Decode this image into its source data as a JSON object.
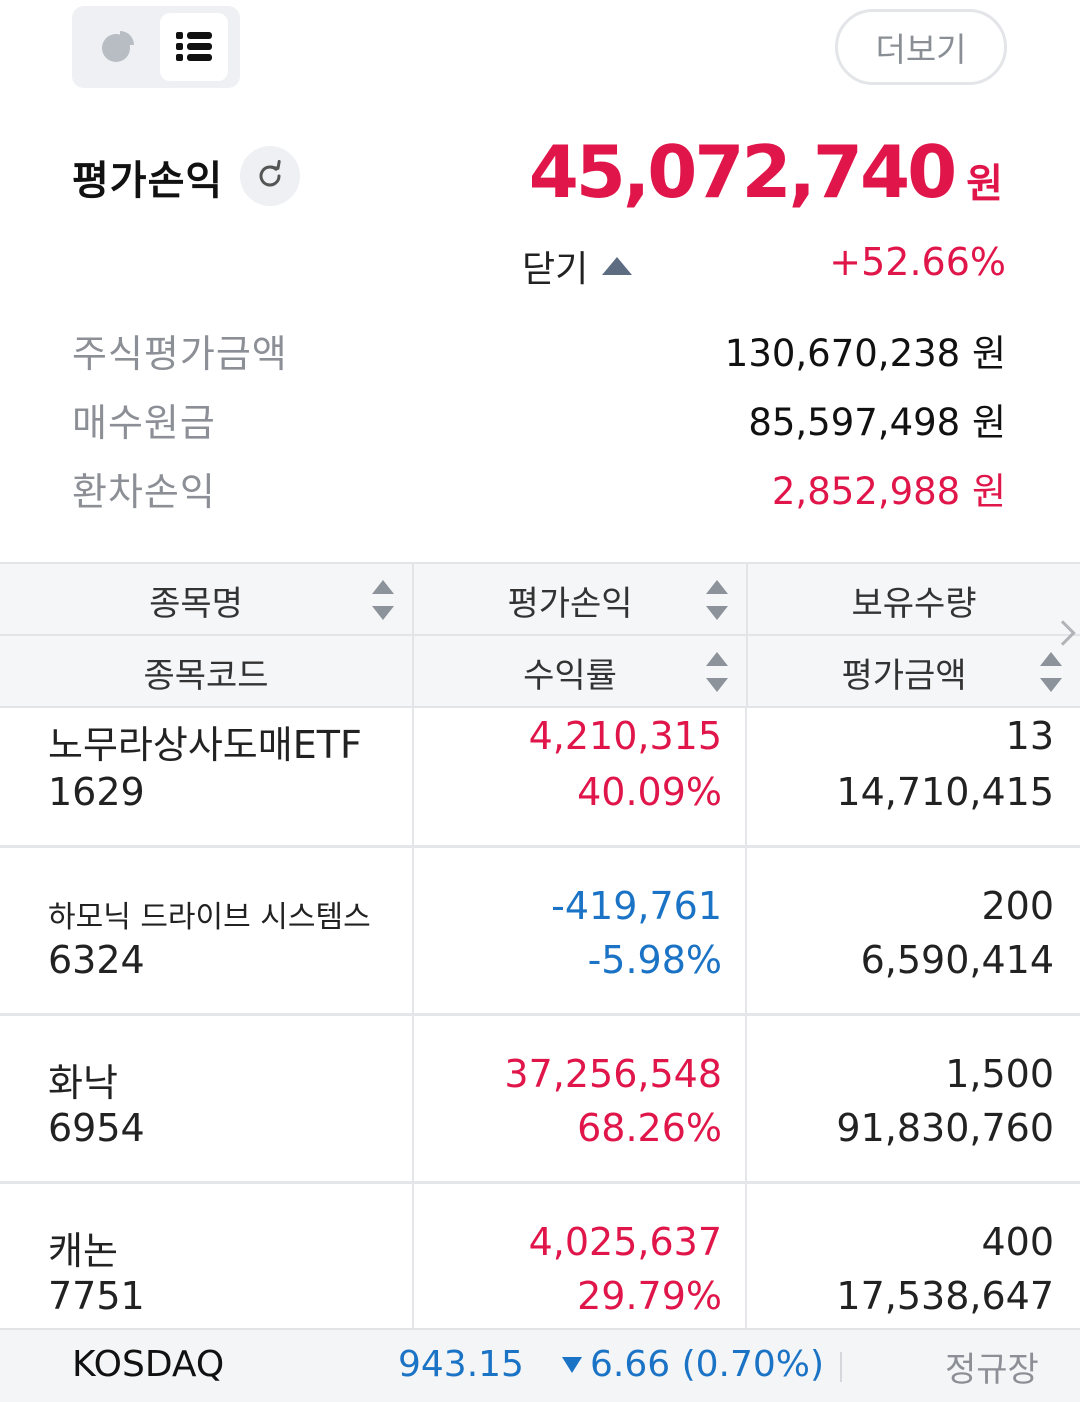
{
  "toolbar": {
    "more_label": "더보기",
    "view_mode_selected": "list"
  },
  "summary": {
    "pl_label": "평가손익",
    "pl_value": "45,072,740",
    "pl_unit": "원",
    "period_label": "닫기",
    "pl_rate": "+52.66%",
    "details": [
      {
        "label": "주식평가금액",
        "value": "130,670,238 원"
      },
      {
        "label": "매수원금",
        "value": "85,597,498 원"
      },
      {
        "label": "환차손익",
        "value": "2,852,988 원"
      }
    ]
  },
  "table": {
    "headers": {
      "row1": [
        "종목명",
        "평가손익",
        "보유수량"
      ],
      "row2": [
        "종목코드",
        "수익률",
        "평가금액"
      ]
    },
    "rows": [
      {
        "name": "노무라상사도매ETF",
        "code": "1629",
        "pl": "4,210,315",
        "rate": "40.09%",
        "qty": "13",
        "amount": "14,710,415",
        "trend": "up"
      },
      {
        "name": "하모닉 드라이브 시스템스",
        "code": "6324",
        "pl": "-419,761",
        "rate": "-5.98%",
        "qty": "200",
        "amount": "6,590,414",
        "trend": "down"
      },
      {
        "name": "화낙",
        "code": "6954",
        "pl": "37,256,548",
        "rate": "68.26%",
        "qty": "1,500",
        "amount": "91,830,760",
        "trend": "up"
      },
      {
        "name": "캐논",
        "code": "7751",
        "pl": "4,025,637",
        "rate": "29.79%",
        "qty": "400",
        "amount": "17,538,647",
        "trend": "up"
      }
    ]
  },
  "ticker": {
    "index": "KOSDAQ",
    "price": "943.15",
    "change": "6.66 (0.70%)",
    "session": "정규장"
  },
  "colors": {
    "up": "#e0164a",
    "down": "#1b73c6"
  }
}
